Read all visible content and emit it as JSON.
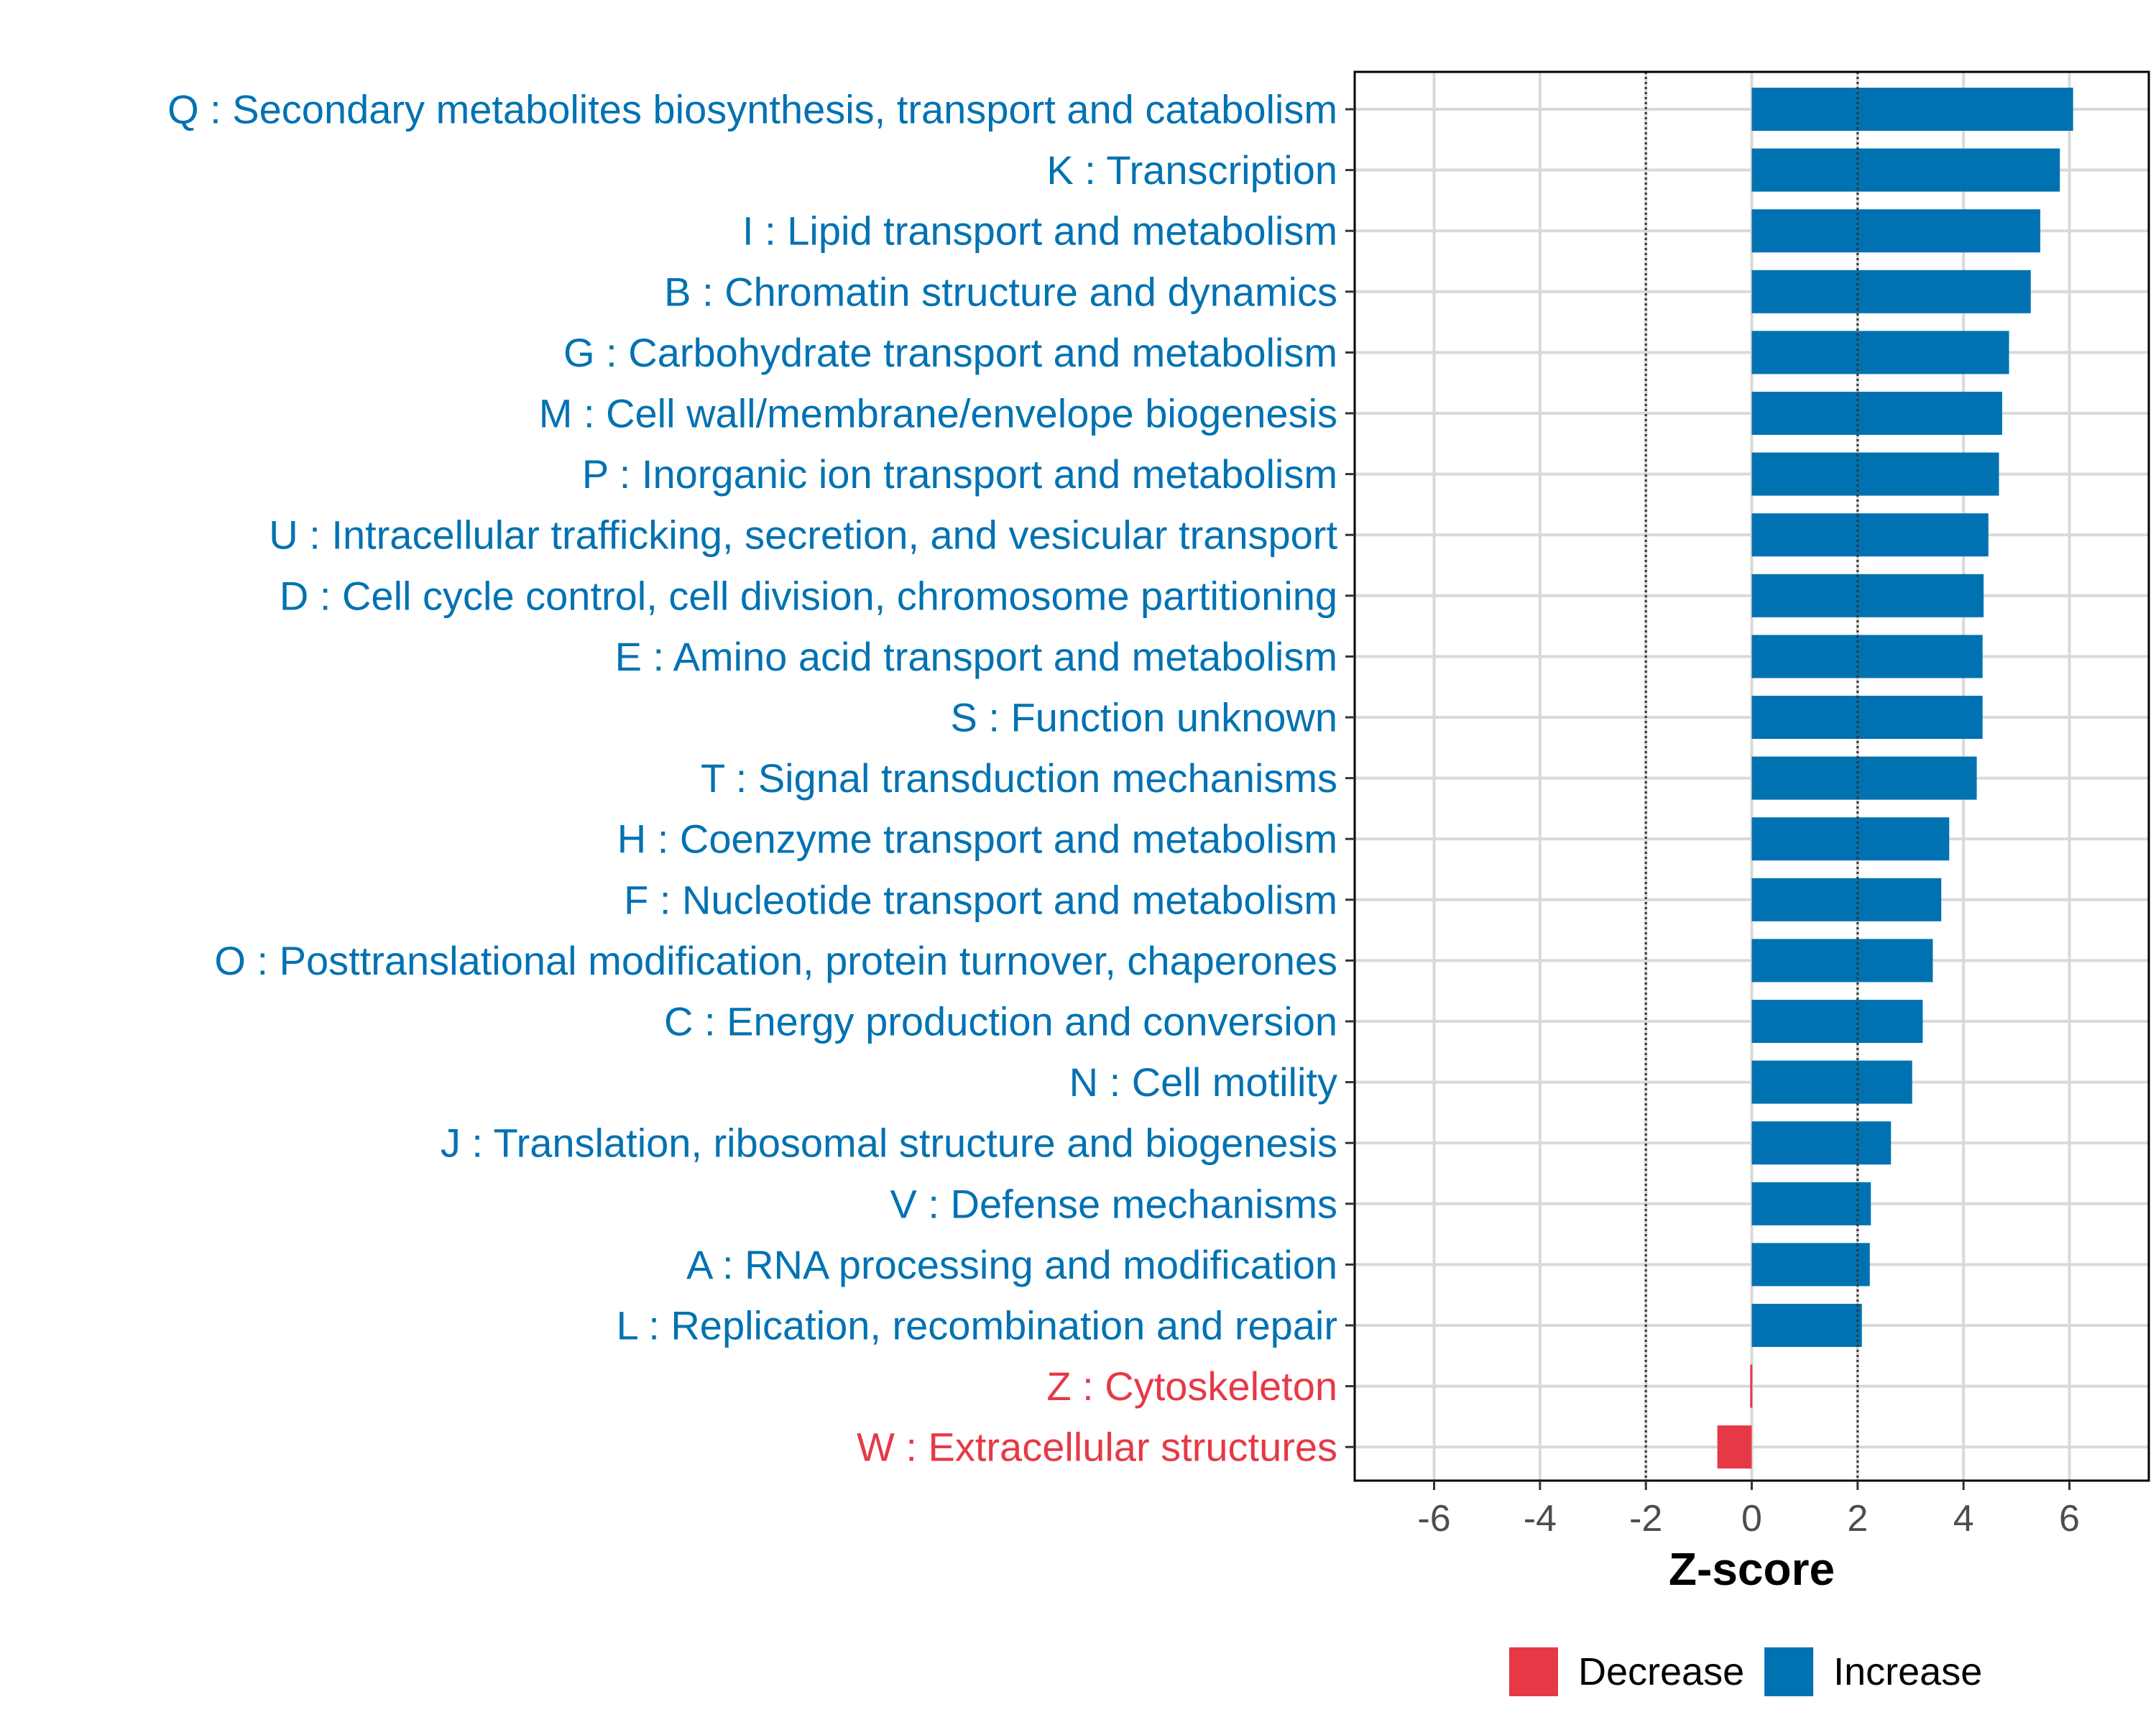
{
  "chart_data": {
    "type": "bar",
    "orientation": "horizontal",
    "title": "",
    "xlabel": "Z-score",
    "ylabel": "",
    "xlim": [
      -7.5,
      7.5
    ],
    "x_ticks": [
      -6,
      -4,
      -2,
      0,
      2,
      4,
      6
    ],
    "x_tick_labels": [
      "-6",
      "-4",
      "-2",
      "0",
      "2",
      "4",
      "6"
    ],
    "reference_lines": [
      -2,
      2
    ],
    "grid": true,
    "legend_position": "bottom",
    "colors": {
      "Decrease": "#E63946",
      "Increase": "#0072B2",
      "grid": "#d9d9d9"
    },
    "legend": [
      {
        "name": "Decrease",
        "color": "#E63946"
      },
      {
        "name": "Increase",
        "color": "#0072B2"
      }
    ],
    "categories": [
      "Q : Secondary metabolites biosynthesis, transport and catabolism",
      "K : Transcription",
      "I : Lipid transport and metabolism",
      "B : Chromatin structure and dynamics",
      "G : Carbohydrate transport and metabolism",
      "M : Cell wall/membrane/envelope biogenesis",
      "P : Inorganic ion transport and metabolism",
      "U : Intracellular trafficking, secretion, and vesicular transport",
      "D : Cell cycle control, cell division, chromosome partitioning",
      "E : Amino acid transport and metabolism",
      "S : Function unknown",
      "T : Signal transduction mechanisms",
      "H : Coenzyme transport and metabolism",
      "F : Nucleotide transport and metabolism",
      "O : Posttranslational modification, protein turnover, chaperones",
      "C : Energy production and conversion",
      "N : Cell motility",
      "J : Translation, ribosomal structure and biogenesis",
      "V : Defense mechanisms",
      "A : RNA processing and modification",
      "L : Replication, recombination and repair",
      "Z : Cytoskeleton",
      "W : Extracellular structures"
    ],
    "values": [
      6.07,
      5.82,
      5.45,
      5.27,
      4.86,
      4.73,
      4.67,
      4.47,
      4.38,
      4.36,
      4.36,
      4.25,
      3.73,
      3.58,
      3.42,
      3.23,
      3.03,
      2.63,
      2.25,
      2.23,
      2.08,
      -0.03,
      -0.65
    ],
    "direction": [
      "Increase",
      "Increase",
      "Increase",
      "Increase",
      "Increase",
      "Increase",
      "Increase",
      "Increase",
      "Increase",
      "Increase",
      "Increase",
      "Increase",
      "Increase",
      "Increase",
      "Increase",
      "Increase",
      "Increase",
      "Increase",
      "Increase",
      "Increase",
      "Increase",
      "Decrease",
      "Decrease"
    ]
  }
}
